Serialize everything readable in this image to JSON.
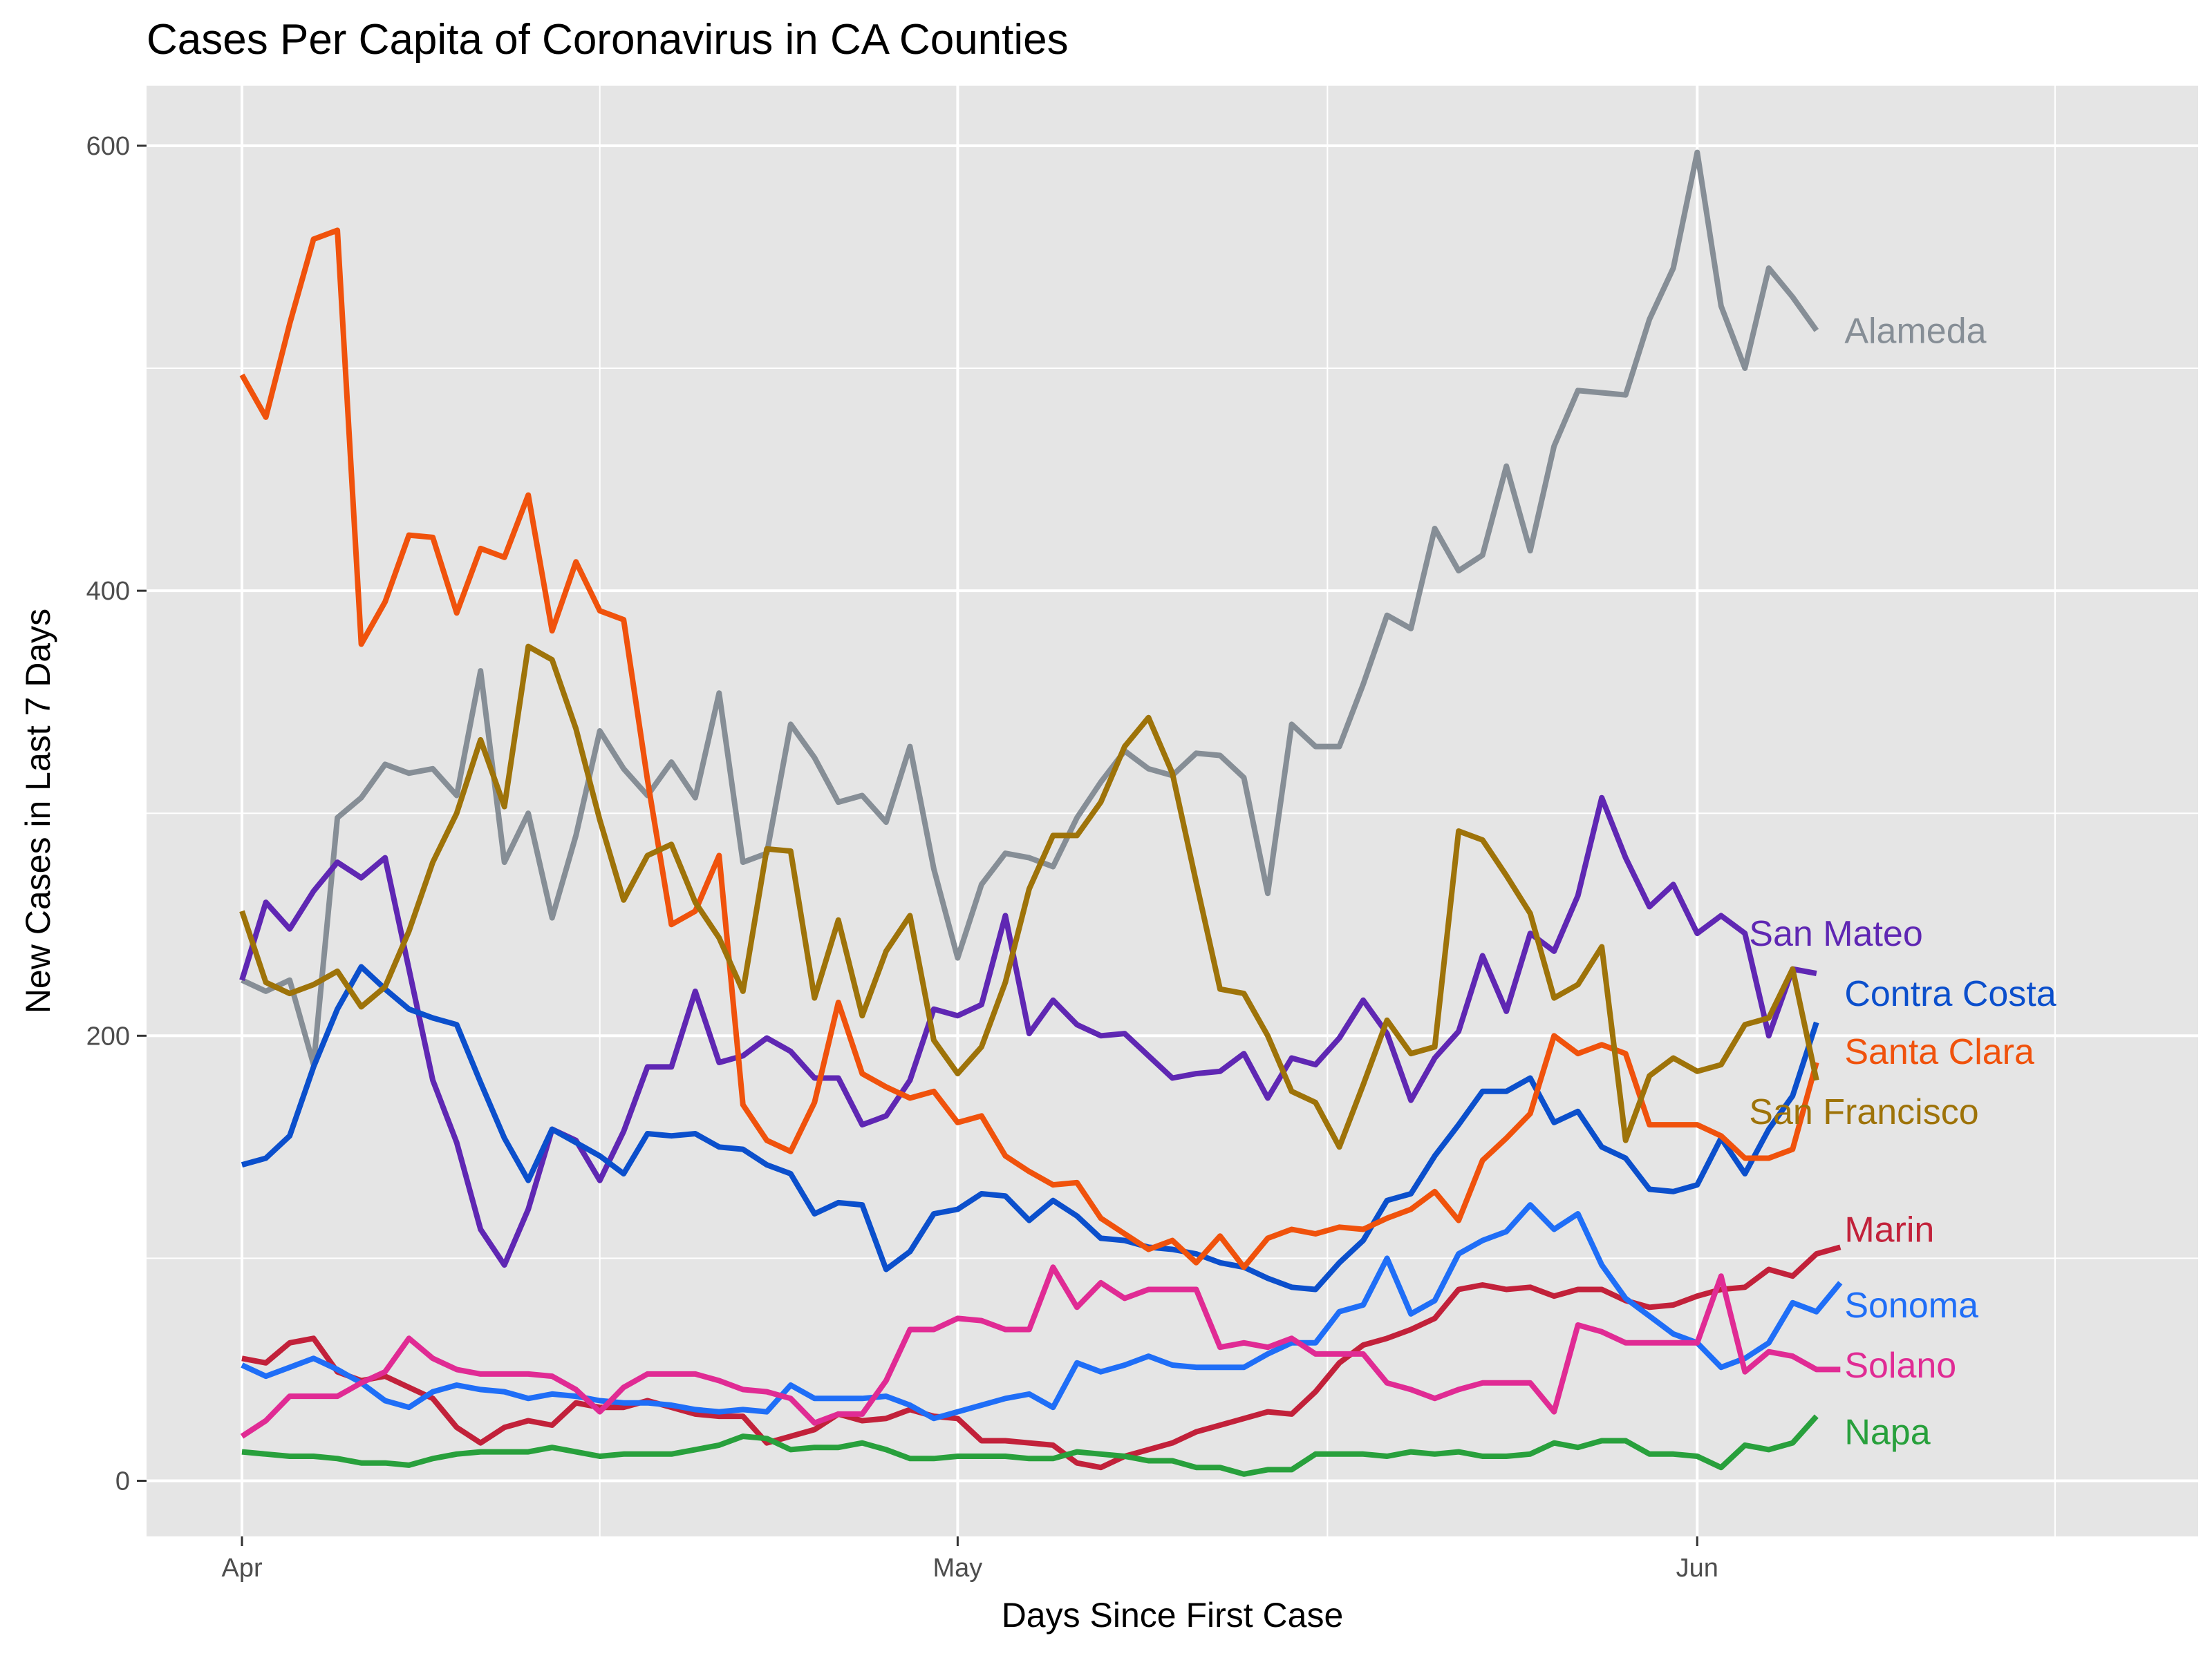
{
  "chart_data": {
    "type": "line",
    "title": "Cases Per Capita of Coronavirus in CA Counties",
    "xlabel": "Days Since First Case",
    "ylabel": "New Cases in Last 7 Days",
    "x_ticks": [
      {
        "label": "Apr",
        "day": 0
      },
      {
        "label": "May",
        "day": 30
      },
      {
        "label": "Jun",
        "day": 61
      }
    ],
    "x_range_days": [
      -4,
      82
    ],
    "ylim": [
      -25,
      627
    ],
    "y_ticks": [
      0,
      200,
      400,
      600
    ],
    "grid": true,
    "start_day": 0,
    "series": [
      {
        "name": "Alameda",
        "color": "#868e96",
        "values": [
          225,
          220,
          225,
          187,
          298,
          307,
          322,
          318,
          320,
          308,
          364,
          278,
          300,
          253,
          290,
          337,
          320,
          308,
          323,
          307,
          354,
          278,
          282,
          340,
          325,
          305,
          308,
          296,
          330,
          275,
          235,
          268,
          282,
          280,
          276,
          298,
          314,
          328,
          320,
          317,
          327,
          326,
          316,
          264,
          340,
          330,
          330,
          358,
          389,
          383,
          428,
          409,
          416,
          456,
          418,
          465,
          490,
          489,
          488,
          522,
          545,
          597,
          528,
          500,
          545,
          532,
          517
        ]
      },
      {
        "name": "San Mateo",
        "color": "#5f27b3",
        "values": [
          225,
          260,
          248,
          265,
          278,
          271,
          280,
          230,
          180,
          152,
          113,
          97,
          122,
          158,
          153,
          135,
          157,
          186,
          186,
          220,
          188,
          191,
          199,
          193,
          181,
          181,
          160,
          164,
          180,
          212,
          209,
          214,
          254,
          201,
          216,
          205,
          200,
          201,
          191,
          181,
          183,
          184,
          192,
          172,
          190,
          187,
          199,
          216,
          201,
          171,
          190,
          202,
          236,
          211,
          246,
          238,
          263,
          307,
          280,
          258,
          268,
          246,
          254,
          246,
          200,
          230,
          228
        ]
      },
      {
        "name": "Contra Costa",
        "color": "#0b4fcc",
        "values": [
          142,
          145,
          155,
          186,
          212,
          231,
          221,
          212,
          208,
          205,
          179,
          154,
          135,
          158,
          152,
          146,
          138,
          156,
          155,
          156,
          150,
          149,
          142,
          138,
          120,
          125,
          124,
          95,
          103,
          120,
          122,
          129,
          128,
          117,
          126,
          119,
          109,
          108,
          105,
          104,
          102,
          98,
          96,
          91,
          87,
          86,
          98,
          108,
          126,
          129,
          146,
          160,
          175,
          175,
          181,
          161,
          166,
          150,
          145,
          131,
          130,
          133,
          154,
          138,
          158,
          173,
          206
        ]
      },
      {
        "name": "Santa Clara",
        "color": "#f0520c",
        "values": [
          497,
          478,
          520,
          558,
          562,
          376,
          395,
          425,
          424,
          390,
          419,
          415,
          443,
          382,
          413,
          391,
          387,
          315,
          250,
          256,
          281,
          169,
          153,
          148,
          170,
          215,
          183,
          177,
          172,
          175,
          161,
          164,
          146,
          139,
          133,
          134,
          118,
          111,
          104,
          108,
          98,
          110,
          96,
          109,
          113,
          111,
          114,
          113,
          118,
          122,
          130,
          117,
          144,
          154,
          165,
          200,
          192,
          196,
          192,
          160,
          160,
          160,
          155,
          145,
          145,
          149,
          188
        ]
      },
      {
        "name": "San Francisco",
        "color": "#9e7309",
        "values": [
          256,
          224,
          219,
          223,
          229,
          213,
          222,
          247,
          278,
          300,
          333,
          303,
          375,
          369,
          338,
          297,
          261,
          281,
          286,
          260,
          244,
          220,
          284,
          283,
          217,
          252,
          209,
          238,
          254,
          198,
          183,
          195,
          224,
          266,
          290,
          290,
          305,
          330,
          343,
          318,
          269,
          221,
          219,
          200,
          175,
          170,
          150,
          178,
          207,
          192,
          195,
          292,
          288,
          272,
          255,
          217,
          223,
          240,
          153,
          182,
          190,
          184,
          187,
          205,
          208,
          230,
          180
        ]
      },
      {
        "name": "Marin",
        "color": "#c2213a",
        "values": [
          55,
          53,
          62,
          64,
          49,
          45,
          47,
          42,
          37,
          24,
          17,
          24,
          27,
          25,
          35,
          33,
          33,
          36,
          33,
          30,
          29,
          29,
          17,
          20,
          23,
          30,
          27,
          28,
          32,
          29,
          28,
          18,
          18,
          17,
          16,
          8,
          6,
          11,
          14,
          17,
          22,
          25,
          28,
          31,
          30,
          40,
          53,
          61,
          64,
          68,
          73,
          86,
          88,
          86,
          87,
          83,
          86,
          86,
          81,
          78,
          79,
          83,
          86,
          87,
          95,
          92,
          102,
          105
        ]
      },
      {
        "name": "Sonoma",
        "color": "#1f6ef7",
        "values": [
          52,
          47,
          51,
          55,
          50,
          44,
          36,
          33,
          40,
          43,
          41,
          40,
          37,
          39,
          38,
          36,
          35,
          35,
          34,
          32,
          31,
          32,
          31,
          43,
          37,
          37,
          37,
          38,
          34,
          28,
          31,
          34,
          37,
          39,
          33,
          53,
          49,
          52,
          56,
          52,
          51,
          51,
          51,
          57,
          62,
          62,
          76,
          79,
          100,
          75,
          81,
          102,
          108,
          112,
          124,
          113,
          120,
          97,
          82,
          74,
          66,
          62,
          51,
          55,
          62,
          80,
          76,
          89
        ]
      },
      {
        "name": "Solano",
        "color": "#e02b94",
        "values": [
          20,
          27,
          38,
          38,
          38,
          44,
          49,
          64,
          55,
          50,
          48,
          48,
          48,
          47,
          41,
          31,
          42,
          48,
          48,
          48,
          45,
          41,
          40,
          37,
          26,
          30,
          30,
          45,
          68,
          68,
          73,
          72,
          68,
          68,
          96,
          78,
          89,
          82,
          86,
          86,
          86,
          60,
          62,
          60,
          64,
          57,
          57,
          57,
          44,
          41,
          37,
          41,
          44,
          44,
          44,
          31,
          70,
          67,
          62,
          62,
          62,
          62,
          92,
          49,
          58,
          56,
          50,
          50
        ]
      },
      {
        "name": "Napa",
        "color": "#28a03c",
        "values": [
          13,
          12,
          11,
          11,
          10,
          8,
          8,
          7,
          10,
          12,
          13,
          13,
          13,
          15,
          13,
          11,
          12,
          12,
          12,
          14,
          16,
          20,
          19,
          14,
          15,
          15,
          17,
          14,
          10,
          10,
          11,
          11,
          11,
          10,
          10,
          13,
          12,
          11,
          9,
          9,
          6,
          6,
          3,
          5,
          5,
          12,
          12,
          12,
          11,
          13,
          12,
          13,
          11,
          11,
          12,
          17,
          15,
          18,
          18,
          12,
          12,
          11,
          6,
          16,
          14,
          17,
          29
        ]
      }
    ],
    "label_y": {
      "Alameda": 517,
      "San Mateo": 246,
      "Contra Costa": 219,
      "Santa Clara": 193,
      "San Francisco": 166,
      "Marin": 113,
      "Sonoma": 79,
      "Solano": 52,
      "Napa": 22
    },
    "label_day": {
      "Alameda": 67,
      "San Mateo": 63,
      "Contra Costa": 67,
      "Santa Clara": 67,
      "San Francisco": 63,
      "Marin": 67,
      "Sonoma": 67,
      "Solano": 67,
      "Napa": 67
    },
    "panel_background": "#e5e5e5",
    "grid_color": "#ffffff"
  }
}
